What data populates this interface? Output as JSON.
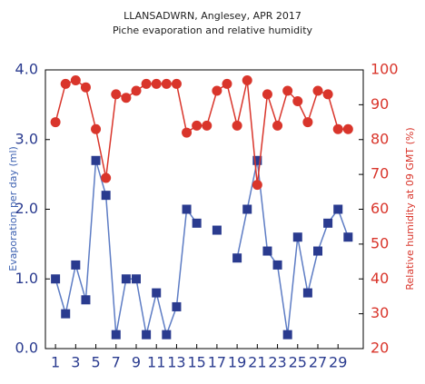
{
  "chart_data": {
    "type": "line",
    "title": "LLANSADWRN, Anglesey, APR 2017",
    "subtitle": "Piche evaporation and relative humidity",
    "y_label": "Evaporation per day (ml)",
    "y2_label": "Relative humidity at 09 GMT (%)",
    "x": [
      1,
      2,
      3,
      4,
      5,
      6,
      7,
      8,
      9,
      10,
      11,
      12,
      13,
      14,
      15,
      16,
      17,
      18,
      19,
      20,
      21,
      22,
      23,
      24,
      25,
      26,
      27,
      28,
      29,
      30
    ],
    "xlim": [
      0,
      31.5
    ],
    "xticks": [
      1,
      3,
      5,
      7,
      9,
      11,
      13,
      15,
      17,
      19,
      21,
      23,
      25,
      27,
      29
    ],
    "ylim": [
      0,
      4
    ],
    "yticks": [
      {
        "value": 0,
        "label": "0.0"
      },
      {
        "value": 1,
        "label": "1.0"
      },
      {
        "value": 2,
        "label": "2.0"
      },
      {
        "value": 3,
        "label": "3.0"
      },
      {
        "value": 4,
        "label": "4.0"
      }
    ],
    "y2lim": [
      20,
      100
    ],
    "y2ticks": [
      20,
      30,
      40,
      50,
      60,
      70,
      80,
      90,
      100
    ],
    "series": [
      {
        "color": "#2a3b8f",
        "line_color": "#5d7cc4",
        "marker": "square",
        "values": [
          1.0,
          0.5,
          1.2,
          0.7,
          2.7,
          2.2,
          0.2,
          1.0,
          1.0,
          0.2,
          0.8,
          0.2,
          0.6,
          2.0,
          1.8,
          null,
          1.7,
          null,
          1.3,
          2.0,
          2.7,
          1.4,
          1.2,
          0.2,
          1.6,
          0.8,
          1.4,
          1.8,
          2.0,
          1.6
        ]
      },
      {
        "color": "#d9352b",
        "line_color": "#d9352b",
        "marker": "circle",
        "axis": "y2",
        "values": [
          85,
          96,
          97,
          95,
          83,
          69,
          93,
          92,
          94,
          96,
          96,
          96,
          96,
          82,
          84,
          84,
          94,
          96,
          84,
          97,
          67,
          93,
          84,
          94,
          91,
          85,
          94,
          93,
          83,
          83
        ]
      }
    ]
  }
}
